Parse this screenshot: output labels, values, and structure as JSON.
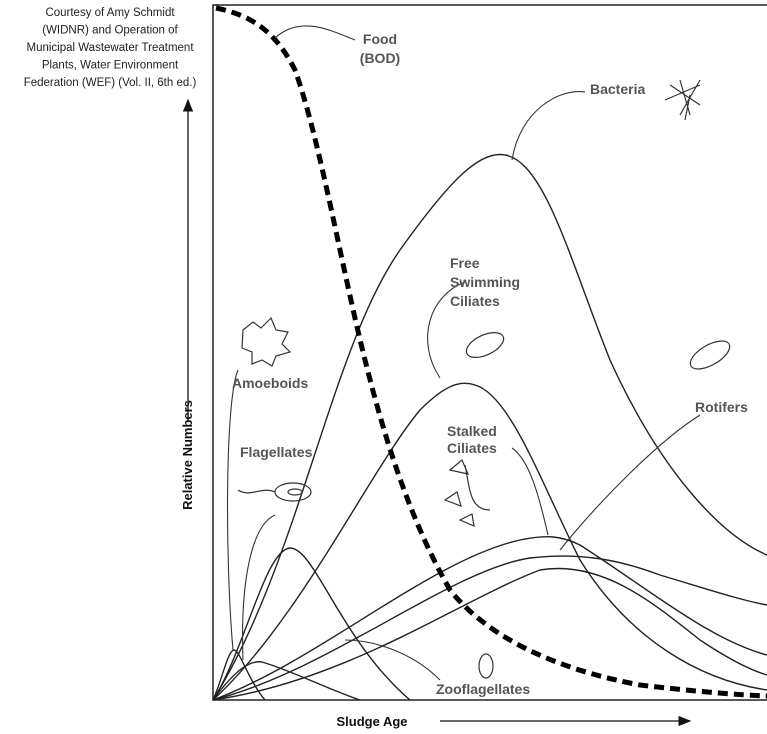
{
  "credit": [
    "Courtesy of Amy Schmidt",
    "(WIDNR) and Operation of",
    "Municipal Wastewater Treatment",
    "Plants, Water Environment",
    "Federation (WEF) (Vol. II, 6th ed.)"
  ],
  "axes": {
    "y_label": "Relative Numbers",
    "x_label": "Sludge Age"
  },
  "labels": [
    {
      "lines": [
        "Food",
        "(BOD)"
      ]
    },
    {
      "lines": [
        "Bacteria"
      ]
    },
    {
      "lines": [
        "Free",
        "Swimming",
        "Ciliates"
      ]
    },
    {
      "lines": [
        "Amoeboids"
      ]
    },
    {
      "lines": [
        "Flagellates"
      ]
    },
    {
      "lines": [
        "Stalked",
        "Ciliates"
      ]
    },
    {
      "lines": [
        "Rotifers"
      ]
    },
    {
      "lines": [
        "Zooflagellates"
      ]
    }
  ]
}
